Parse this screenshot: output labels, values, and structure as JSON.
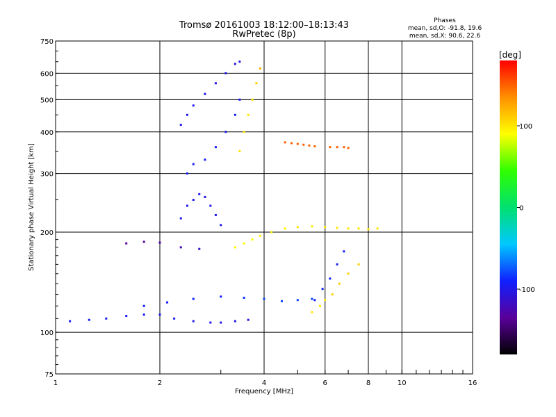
{
  "chart_data": {
    "type": "scatter",
    "title": "Tromsø 20161003 18:12:00–18:13:43",
    "subtitle": "RwPretec (8p)",
    "xlabel": "Frequency [MHz]",
    "ylabel": "Stationary phase Virtual Height [km]",
    "x_scale": "log",
    "y_scale": "log",
    "xlim": [
      1,
      16
    ],
    "ylim": [
      75,
      750
    ],
    "x_ticks": [
      1,
      2,
      4,
      6,
      8,
      10,
      16
    ],
    "x_tick_labels": [
      "1",
      "2",
      "4",
      "6",
      "8",
      "10",
      "16"
    ],
    "y_ticks": [
      75,
      100,
      200,
      300,
      400,
      500,
      600,
      750
    ],
    "y_tick_labels": [
      "75",
      "100",
      "200",
      "300",
      "400",
      "500",
      "600",
      "750"
    ],
    "grid": true,
    "legend": {
      "title": "Phases",
      "line1": "mean, sd,O: -91.8, 19.6",
      "line2": "mean, sd,X: 90.6, 22.6"
    },
    "colorbar": {
      "label": "[deg]",
      "min": -180,
      "max": 180,
      "ticks": [
        100,
        0,
        -100
      ],
      "tick_labels": [
        "100",
        "0",
        "-100"
      ],
      "colors": [
        "#000000",
        "#5a009a",
        "#1020ff",
        "#00c8ff",
        "#00e070",
        "#30ff00",
        "#ffff00",
        "#ff9000",
        "#ff0000"
      ]
    },
    "series": [
      {
        "name": "O",
        "x": [
          1.1,
          1.25,
          1.4,
          1.6,
          1.8,
          2.0,
          2.2,
          2.5,
          2.8,
          3.0,
          3.3,
          3.6
        ],
        "y": [
          108,
          109,
          110,
          112,
          113,
          113,
          110,
          108,
          107,
          107,
          108,
          109
        ],
        "phase": [
          -95,
          -95,
          -95,
          -95,
          -95,
          -95,
          -95,
          -100,
          -100,
          -100,
          -100,
          -100
        ]
      },
      {
        "name": "O",
        "x": [
          1.8,
          2.1,
          2.5,
          3.0,
          3.5,
          4.0,
          4.5,
          5.0,
          5.5
        ],
        "y": [
          120,
          123,
          126,
          128,
          127,
          126,
          124,
          125,
          126
        ],
        "phase": [
          -95,
          -95,
          -90,
          -90,
          -85,
          -80,
          -80,
          -80,
          -80
        ]
      },
      {
        "name": "O",
        "x": [
          1.6,
          1.8,
          2.0,
          2.3,
          2.6
        ],
        "y": [
          185,
          187,
          186,
          180,
          178
        ],
        "phase": [
          -135,
          -135,
          -130,
          -120,
          -110
        ]
      },
      {
        "name": "O",
        "x": [
          2.3,
          2.4,
          2.5,
          2.7,
          2.9,
          3.1,
          3.3,
          3.4
        ],
        "y": [
          420,
          450,
          480,
          520,
          560,
          600,
          640,
          650
        ],
        "phase": [
          -100,
          -100,
          -100,
          -100,
          -100,
          -100,
          -100,
          -100
        ]
      },
      {
        "name": "O",
        "x": [
          2.4,
          2.5,
          2.7,
          2.9,
          3.1,
          3.3,
          3.4
        ],
        "y": [
          300,
          320,
          330,
          360,
          400,
          450,
          500
        ],
        "phase": [
          -95,
          -95,
          -95,
          -95,
          -95,
          -95,
          -95
        ]
      },
      {
        "name": "O",
        "x": [
          2.3,
          2.4,
          2.5,
          2.6,
          2.7,
          2.8,
          2.9,
          3.0
        ],
        "y": [
          220,
          240,
          250,
          260,
          255,
          240,
          225,
          210
        ],
        "phase": [
          -100,
          -100,
          -100,
          -100,
          -100,
          -100,
          -100,
          -100
        ]
      },
      {
        "name": "X",
        "x": [
          3.4,
          3.5,
          3.6,
          3.7,
          3.8,
          3.9
        ],
        "y": [
          350,
          400,
          450,
          500,
          560,
          620
        ],
        "phase": [
          100,
          100,
          100,
          100,
          110,
          120
        ]
      },
      {
        "name": "X",
        "x": [
          3.3,
          3.5,
          3.7,
          3.9,
          4.2,
          4.6,
          5.0,
          5.5,
          6.0,
          6.5,
          7.0,
          7.5,
          8.0,
          8.5
        ],
        "y": [
          180,
          185,
          190,
          195,
          200,
          205,
          207,
          208,
          207,
          206,
          205,
          205,
          204,
          205
        ],
        "phase": [
          90,
          90,
          90,
          95,
          95,
          95,
          100,
          100,
          100,
          100,
          100,
          100,
          100,
          100
        ]
      },
      {
        "name": "X",
        "x": [
          4.6,
          4.8,
          5.0,
          5.2,
          5.4,
          5.6,
          6.2,
          6.5,
          6.8,
          7.0
        ],
        "y": [
          372,
          370,
          368,
          366,
          364,
          362,
          360,
          360,
          360,
          358
        ],
        "phase": [
          150,
          150,
          150,
          150,
          150,
          150,
          150,
          150,
          150,
          150
        ]
      },
      {
        "name": "X",
        "x": [
          5.5,
          5.8,
          6.0,
          6.3,
          6.6,
          7.0,
          7.5
        ],
        "y": [
          115,
          120,
          125,
          130,
          140,
          150,
          160
        ],
        "phase": [
          100,
          100,
          100,
          110,
          110,
          110,
          110
        ]
      },
      {
        "name": "O",
        "x": [
          5.6,
          5.9,
          6.2,
          6.5,
          6.8
        ],
        "y": [
          125,
          135,
          145,
          160,
          175
        ],
        "phase": [
          -90,
          -90,
          -90,
          -95,
          -95
        ]
      }
    ]
  }
}
